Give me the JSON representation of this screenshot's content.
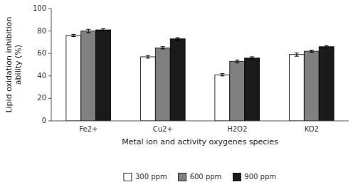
{
  "chart_data": {
    "type": "bar",
    "categories": [
      "Fe2+",
      "Cu2+",
      "H2O2",
      "KO2"
    ],
    "series": [
      {
        "name": "300 ppm",
        "color": "white",
        "values": [
          76,
          57,
          41,
          59
        ],
        "errors": [
          1.0,
          1.2,
          1.0,
          1.5
        ]
      },
      {
        "name": "600 ppm",
        "color": "#808080",
        "values": [
          80,
          65,
          53,
          62
        ],
        "errors": [
          1.5,
          1.0,
          1.2,
          1.0
        ]
      },
      {
        "name": "900 ppm",
        "color": "#1a1a1a",
        "values": [
          81,
          73,
          56,
          66
        ],
        "errors": [
          1.0,
          1.0,
          1.0,
          1.2
        ]
      }
    ],
    "xlabel": "Metal ion and activity oxygenes species",
    "ylabel": "Lipid oxidation inhibition\nability (%)",
    "ylim": [
      0,
      100
    ],
    "yticks": [
      0,
      20,
      40,
      60,
      80,
      100
    ],
    "grid": false,
    "legend": "bottom"
  }
}
